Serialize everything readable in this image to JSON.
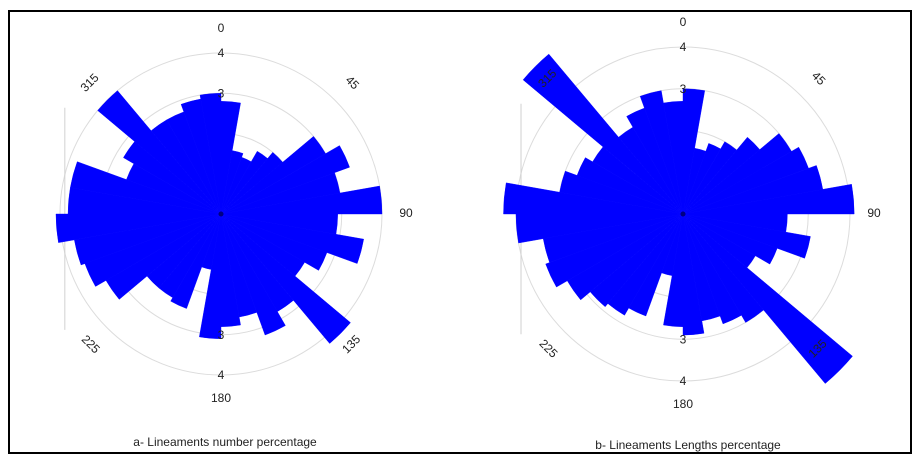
{
  "colors": {
    "petal": "#0000ff",
    "ring": "#dcdcdc",
    "axis": "#d0d0d0",
    "text": "#222222"
  },
  "chart_data": [
    {
      "type": "rose",
      "title": "a- Lineaments number percentage",
      "rmax": 4,
      "rings": [
        1,
        2,
        3,
        4
      ],
      "ring_labels": [
        "3",
        "4"
      ],
      "angle_labels": [
        "0",
        "45",
        "90",
        "135",
        "180",
        "225",
        "315"
      ],
      "bin_width_deg": 10,
      "bins_start_deg": [
        0,
        10,
        20,
        30,
        40,
        50,
        60,
        70,
        80,
        90,
        100,
        110,
        120,
        130,
        140,
        150,
        160,
        170,
        180,
        190,
        200,
        210,
        220,
        230,
        240,
        250,
        260,
        270,
        280,
        290,
        300,
        310,
        320,
        330,
        340,
        350
      ],
      "values": [
        2.8,
        1.6,
        1.5,
        1.8,
        2.0,
        3.0,
        3.4,
        3.0,
        4.0,
        2.9,
        3.6,
        2.8,
        2.4,
        4.2,
        2.8,
        3.2,
        2.6,
        2.8,
        3.1,
        1.4,
        2.5,
        2.4,
        2.4,
        3.3,
        3.6,
        3.7,
        4.1,
        3.8,
        3.8,
        2.5,
        2.8,
        4.0,
        2.7,
        2.7,
        2.9,
        3.0
      ]
    },
    {
      "type": "rose",
      "title": "b- Lineaments Lengths percentage",
      "rmax": 4,
      "rings": [
        1,
        2,
        3,
        4
      ],
      "ring_labels": [
        "3",
        "4"
      ],
      "angle_labels": [
        "0",
        "45",
        "90",
        "135",
        "180",
        "225",
        "315"
      ],
      "bin_width_deg": 10,
      "bins_start_deg": [
        0,
        10,
        20,
        30,
        40,
        50,
        60,
        70,
        80,
        90,
        100,
        110,
        120,
        130,
        140,
        150,
        160,
        170,
        180,
        190,
        200,
        210,
        220,
        230,
        240,
        250,
        260,
        270,
        280,
        290,
        300,
        310,
        320,
        330,
        340,
        350
      ],
      "values": [
        3.0,
        1.6,
        1.8,
        2.0,
        2.4,
        3.0,
        3.2,
        3.4,
        4.1,
        2.5,
        3.1,
        2.4,
        2.0,
        5.3,
        3.0,
        2.8,
        2.6,
        2.9,
        2.7,
        1.5,
        2.6,
        2.8,
        2.9,
        3.2,
        3.5,
        3.4,
        4.0,
        4.3,
        3.0,
        2.7,
        2.5,
        5.0,
        2.4,
        2.7,
        3.0,
        2.7
      ]
    }
  ]
}
